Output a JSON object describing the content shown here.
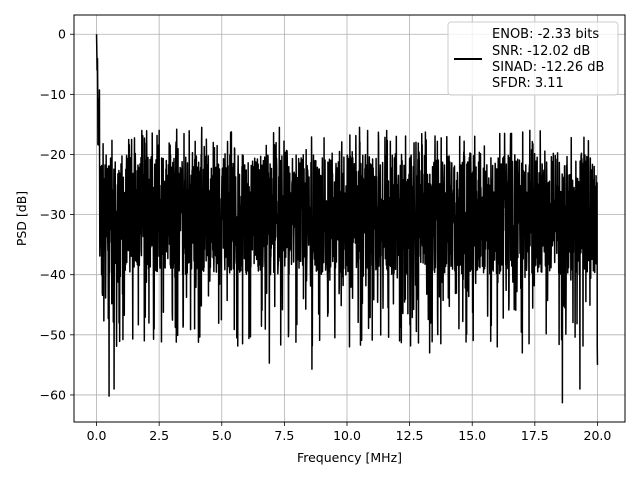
{
  "chart_data": {
    "type": "line",
    "title": "",
    "xlabel": "Frequency [MHz]",
    "ylabel": "PSD [dB]",
    "xlim": [
      -0.9,
      21.1
    ],
    "ylim": [
      -64.5,
      3.2
    ],
    "xticks": [
      0.0,
      2.5,
      5.0,
      7.5,
      10.0,
      12.5,
      15.0,
      17.5,
      20.0
    ],
    "xtick_labels": [
      "0.0",
      "2.5",
      "5.0",
      "7.5",
      "10.0",
      "12.5",
      "15.0",
      "17.5",
      "20.0"
    ],
    "yticks": [
      0,
      -10,
      -20,
      -30,
      -40,
      -50,
      -60
    ],
    "ytick_labels": [
      "0",
      "−10",
      "−20",
      "−30",
      "−40",
      "−50",
      "−60"
    ],
    "grid": true,
    "legend_position": "top-right",
    "series": [
      {
        "legend_lines": [
          "ENOB: -2.33 bits",
          "SNR: -12.02 dB",
          "SINAD: -12.26 dB",
          "SFDR: 3.11"
        ],
        "color": "#000000",
        "x_range_mhz": [
          0.0,
          20.0
        ],
        "points_sampled": [
          [
            0.0,
            0.0
          ],
          [
            0.03,
            -5.5
          ],
          [
            0.06,
            -12.0
          ],
          [
            0.1,
            -18.5
          ],
          [
            0.15,
            -22.0
          ],
          [
            0.2,
            -40.0
          ],
          [
            0.5,
            -60.2
          ],
          [
            0.7,
            -59.0
          ],
          [
            0.9,
            -48.0
          ],
          [
            1.4,
            -17.5
          ],
          [
            2.3,
            -49.0
          ],
          [
            2.5,
            -16.0
          ],
          [
            3.2,
            -15.8
          ],
          [
            4.2,
            -15.5
          ],
          [
            5.6,
            -50.5
          ],
          [
            6.9,
            -54.7
          ],
          [
            7.3,
            -15.5
          ],
          [
            8.6,
            -55.7
          ],
          [
            10.1,
            -52.0
          ],
          [
            10.5,
            -15.5
          ],
          [
            12.1,
            -51.0
          ],
          [
            13.3,
            -53.0
          ],
          [
            14.5,
            -17.0
          ],
          [
            16.0,
            -52.0
          ],
          [
            17.0,
            -53.0
          ],
          [
            17.3,
            -16.0
          ],
          [
            18.6,
            -61.3
          ],
          [
            19.3,
            -59.0
          ],
          [
            20.0,
            -55.0
          ]
        ],
        "noise_floor_db": [
          -20,
          -40
        ],
        "typical_level_db": -28
      }
    ]
  },
  "colors": {
    "line": "#000000",
    "grid": "#b0b0b0",
    "axes": "#000000",
    "background": "#ffffff"
  }
}
